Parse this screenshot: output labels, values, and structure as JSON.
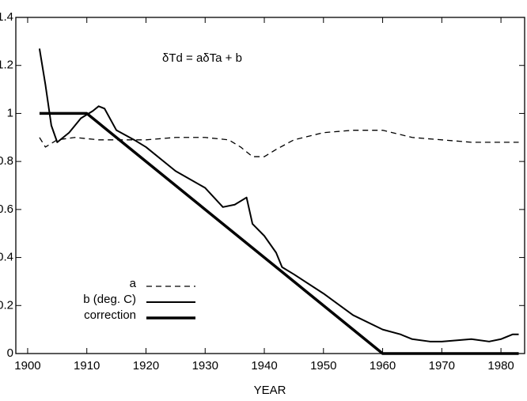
{
  "chart_data": {
    "type": "line",
    "annotation": "δTd = aδTa + b",
    "x_label": "YEAR",
    "xlim": [
      1898,
      1984
    ],
    "xticks": [
      1900,
      1910,
      1920,
      1930,
      1940,
      1950,
      1960,
      1970,
      1980
    ],
    "ylim": [
      0,
      1.4
    ],
    "yticks": [
      0,
      0.2,
      0.4,
      0.6,
      0.8,
      1,
      1.2,
      1.4
    ],
    "legend": "lower-left",
    "series": [
      {
        "name": "a",
        "color": "#000",
        "style": "dashed",
        "width": 1.3,
        "x": [
          1902,
          1903,
          1905,
          1908,
          1912,
          1920,
          1925,
          1930,
          1934,
          1936,
          1938,
          1940,
          1942,
          1945,
          1950,
          1955,
          1960,
          1965,
          1970,
          1975,
          1980,
          1983
        ],
        "values": [
          0.9,
          0.86,
          0.89,
          0.9,
          0.89,
          0.89,
          0.9,
          0.9,
          0.89,
          0.86,
          0.82,
          0.82,
          0.85,
          0.89,
          0.92,
          0.93,
          0.93,
          0.9,
          0.89,
          0.88,
          0.88,
          0.88
        ]
      },
      {
        "name": "b (deg. C)",
        "color": "#000",
        "style": "solid",
        "width": 2,
        "x": [
          1902,
          1903,
          1904,
          1905,
          1907,
          1909,
          1911,
          1912,
          1913,
          1915,
          1918,
          1920,
          1925,
          1930,
          1933,
          1935,
          1937,
          1938,
          1940,
          1942,
          1943,
          1945,
          1950,
          1955,
          1960,
          1963,
          1965,
          1968,
          1970,
          1975,
          1978,
          1980,
          1982,
          1983
        ],
        "values": [
          1.27,
          1.12,
          0.95,
          0.88,
          0.92,
          0.98,
          1.01,
          1.03,
          1.02,
          0.93,
          0.89,
          0.86,
          0.76,
          0.69,
          0.61,
          0.62,
          0.65,
          0.54,
          0.49,
          0.42,
          0.36,
          0.33,
          0.25,
          0.16,
          0.1,
          0.08,
          0.06,
          0.05,
          0.05,
          0.06,
          0.05,
          0.06,
          0.08,
          0.08
        ]
      },
      {
        "name": "correction",
        "color": "#000",
        "style": "solid",
        "width": 3.5,
        "x": [
          1902,
          1910,
          1960,
          1983
        ],
        "values": [
          1,
          1,
          0,
          0
        ]
      }
    ]
  }
}
